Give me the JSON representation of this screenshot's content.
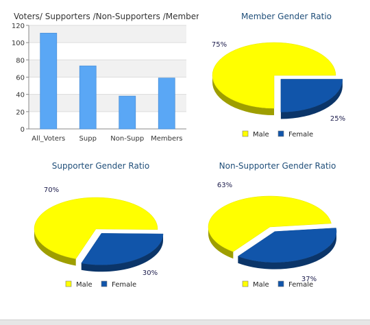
{
  "chart_data": [
    {
      "type": "bar",
      "title": "Voters/ Supporters /Non-Supporters /Members",
      "categories": [
        "All_Voters",
        "Supp",
        "Non-Supp",
        "Members"
      ],
      "values": [
        111,
        73,
        38,
        59
      ],
      "ylim": [
        0,
        120
      ],
      "yticks": [
        0,
        20,
        40,
        60,
        80,
        100,
        120
      ],
      "grid": true,
      "bar_color": "#5aa7f5"
    },
    {
      "type": "pie",
      "title": "Member Gender Ratio",
      "labels": [
        "Male",
        "Female"
      ],
      "values": [
        75,
        25
      ],
      "value_labels": [
        "75%",
        "25%"
      ],
      "colors": [
        "#ffff00",
        "#1155aa"
      ],
      "legend": "bottom"
    },
    {
      "type": "pie",
      "title": "Supporter Gender Ratio",
      "labels": [
        "Male",
        "Female"
      ],
      "values": [
        70,
        30
      ],
      "value_labels": [
        "70%",
        "30%"
      ],
      "colors": [
        "#ffff00",
        "#1155aa"
      ],
      "legend": "bottom"
    },
    {
      "type": "pie",
      "title": "Non-Supporter Gender Ratio",
      "labels": [
        "Male",
        "Female"
      ],
      "values": [
        63,
        37
      ],
      "value_labels": [
        "63%",
        "37%"
      ],
      "colors": [
        "#ffff00",
        "#1155aa"
      ],
      "legend": "bottom"
    }
  ]
}
